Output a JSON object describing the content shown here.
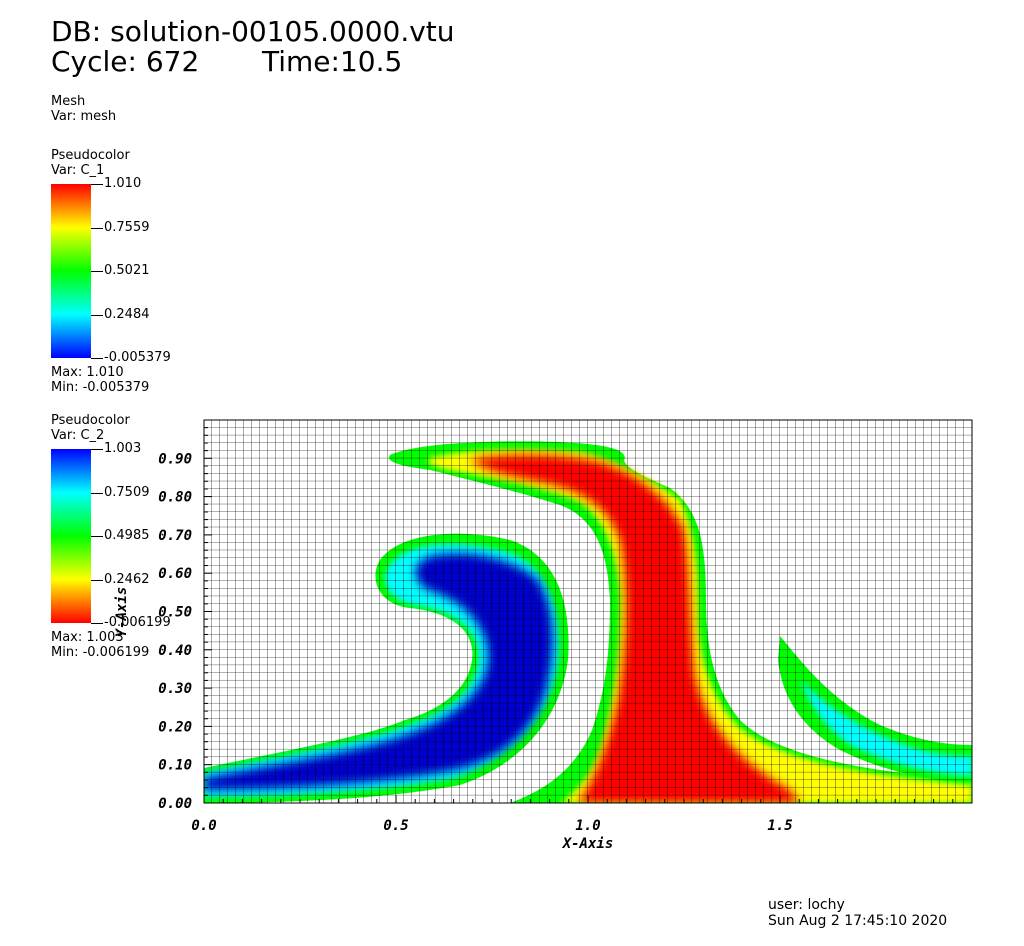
{
  "header": {
    "db_line": "DB: solution-00105.0000.vtu",
    "cycle_label": "Cycle: 672",
    "time_label": "Time:10.5"
  },
  "mesh_legend": {
    "title": "Mesh",
    "var": "Var: mesh"
  },
  "legend_c1": {
    "title": "Pseudocolor",
    "var": "Var: C_1",
    "ticks": [
      "1.010",
      "0.7559",
      "0.5021",
      "0.2484",
      "-0.005379"
    ],
    "max": "Max:  1.010",
    "min": "Min: -0.005379",
    "colors": [
      "#ff0000",
      "#ffff00",
      "#00ff00",
      "#00ffff",
      "#0000ff"
    ]
  },
  "legend_c2": {
    "title": "Pseudocolor",
    "var": "Var: C_2",
    "ticks": [
      "1.003",
      "0.7509",
      "0.4985",
      "0.2462",
      "-0.006199"
    ],
    "max": "Max:  1.003",
    "min": "Min: -0.006199",
    "colors": [
      "#0000ff",
      "#00ffff",
      "#00ff00",
      "#ffff00",
      "#ff0000"
    ]
  },
  "footer": {
    "user": "user: lochy",
    "date": "Sun Aug  2 17:45:10 2020"
  },
  "chart_data": {
    "type": "heatmap",
    "xlabel": "X-Axis",
    "ylabel": "Y-Axis",
    "xlim": [
      0.0,
      2.0
    ],
    "ylim": [
      0.0,
      1.0
    ],
    "x_ticks": [
      "0.0",
      "0.5",
      "1.0",
      "1.5"
    ],
    "y_ticks": [
      "0.00",
      "0.10",
      "0.20",
      "0.30",
      "0.40",
      "0.50",
      "0.60",
      "0.70",
      "0.80",
      "0.90"
    ],
    "grid": true,
    "fields": [
      {
        "name": "C_1",
        "colormap": "hot-rainbow",
        "max": 1.01,
        "min": -0.005379
      },
      {
        "name": "C_2",
        "colormap": "rainbow-reversed",
        "max": 1.003,
        "min": -0.006199
      }
    ]
  }
}
